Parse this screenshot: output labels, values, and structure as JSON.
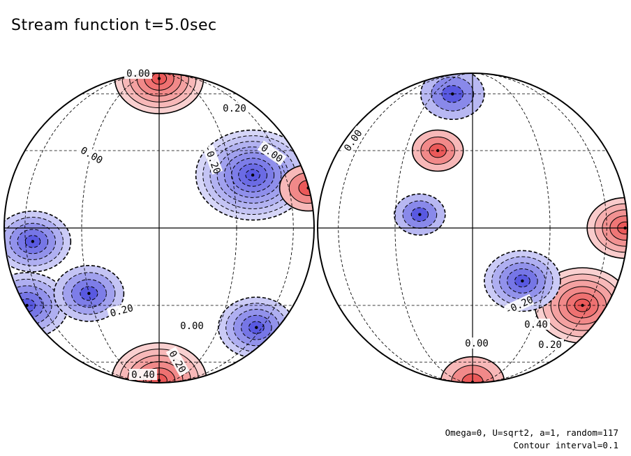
{
  "title": "Stream function t=5.0sec",
  "params_note": "Omega=0, U=sqrt2, a=1, random=117",
  "contour_note": "Contour interval=0.1",
  "colors": {
    "positive": "#e83c3c",
    "negative": "#3c3cdc",
    "line": "#000000"
  },
  "chart_data": {
    "type": "heatmap",
    "title": "Stream function t=5.0sec",
    "projection": "orthographic two hemispheres",
    "contour_interval": 0.1,
    "value_range": [
      -0.8,
      0.8
    ],
    "panels": [
      {
        "name": "",
        "labels": [
          "0.00",
          "0.00",
          "0.20",
          "0.00",
          "-0.20",
          "0.20",
          "0.00",
          "0.40",
          "0.20"
        ],
        "extrema": [
          {
            "sign": "positive",
            "lon": 0,
            "lat": 75,
            "amp": 0.55
          },
          {
            "sign": "positive",
            "lon": 0,
            "lat": -80,
            "amp": 0.6
          },
          {
            "sign": "negative",
            "lon": 40,
            "lat": 20,
            "amp": 0.75
          },
          {
            "sign": "negative",
            "lon": -55,
            "lat": -5,
            "amp": 0.45
          },
          {
            "sign": "negative",
            "lon": -80,
            "lat": -30,
            "amp": 0.5
          },
          {
            "sign": "negative",
            "lon": 55,
            "lat": -40,
            "amp": 0.45
          },
          {
            "sign": "negative",
            "lon": -30,
            "lat": -25,
            "amp": 0.4
          },
          {
            "sign": "positive",
            "lon": 85,
            "lat": 15,
            "amp": 0.3
          }
        ]
      },
      {
        "name": "",
        "labels": [
          "0.00",
          "-0.20",
          "0.40",
          "0.00",
          "0.20"
        ],
        "extrema": [
          {
            "sign": "positive",
            "lon": 55,
            "lat": -30,
            "amp": 0.6
          },
          {
            "sign": "positive",
            "lon": 80,
            "lat": 0,
            "amp": 0.45
          },
          {
            "sign": "negative",
            "lon": 20,
            "lat": -20,
            "amp": 0.45
          },
          {
            "sign": "negative",
            "lon": -15,
            "lat": 60,
            "amp": 0.35
          },
          {
            "sign": "negative",
            "lon": -20,
            "lat": 5,
            "amp": 0.25
          },
          {
            "sign": "positive",
            "lon": 0,
            "lat": -85,
            "amp": 0.35
          },
          {
            "sign": "positive",
            "lon": -15,
            "lat": 30,
            "amp": 0.25
          }
        ]
      }
    ]
  }
}
